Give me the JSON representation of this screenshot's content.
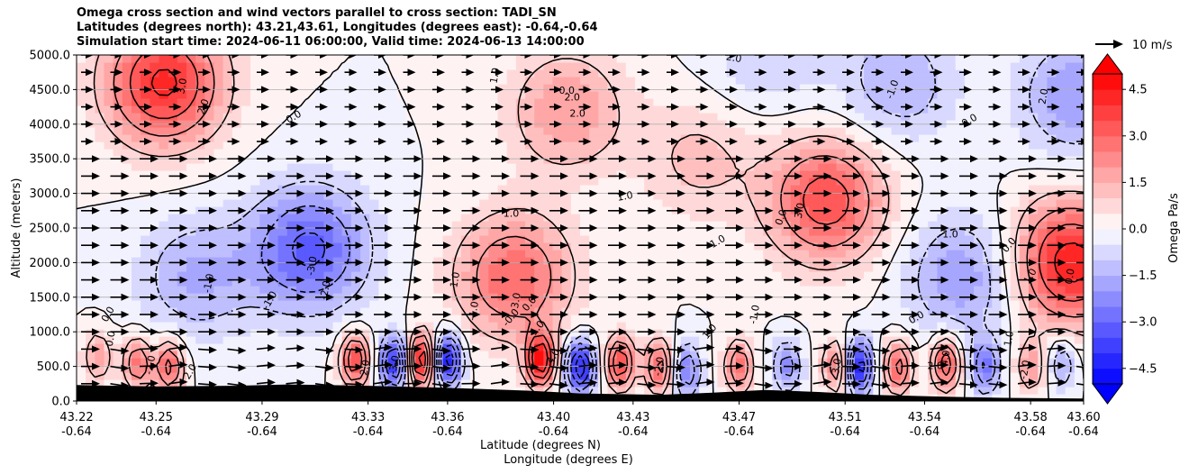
{
  "chart_data": {
    "type": "heatmap",
    "title_lines": [
      "Omega cross section and wind vectors parallel to cross section: TADI_SN",
      "Latitudes (degrees north): 43.21,43.61, Longitudes (degrees east): -0.64,-0.64",
      "Simulation start time: 2024-06-11 06:00:00, Valid time: 2024-06-13 14:00:00"
    ],
    "ylabel": "Altitude (meters)",
    "xlabel": "Latitude (degrees N)",
    "xlabel2": "Longitude (degrees E)",
    "ylim": [
      0,
      5000
    ],
    "yticks": [
      "0.0",
      "500.0",
      "1000.0",
      "1500.0",
      "2000.0",
      "2500.0",
      "3000.0",
      "3500.0",
      "4000.0",
      "4500.0",
      "5000.0"
    ],
    "xlim": [
      43.22,
      43.6
    ],
    "xticks": [
      {
        "lat": "43.22",
        "lon": "-0.64"
      },
      {
        "lat": "43.25",
        "lon": "-0.64"
      },
      {
        "lat": "43.29",
        "lon": "-0.64"
      },
      {
        "lat": "43.33",
        "lon": "-0.64"
      },
      {
        "lat": "43.36",
        "lon": "-0.64"
      },
      {
        "lat": "43.40",
        "lon": "-0.64"
      },
      {
        "lat": "43.43",
        "lon": "-0.64"
      },
      {
        "lat": "43.47",
        "lon": "-0.64"
      },
      {
        "lat": "43.51",
        "lon": "-0.64"
      },
      {
        "lat": "43.54",
        "lon": "-0.64"
      },
      {
        "lat": "43.58",
        "lon": "-0.64"
      },
      {
        "lat": "43.60",
        "lon": "-0.64"
      }
    ],
    "grid": "horizontal",
    "colorbar": {
      "label": "Omega Pa/s",
      "range": [
        -5,
        5
      ],
      "ticks": [
        "4.5",
        "3.0",
        "1.5",
        "0.0",
        "−1.5",
        "−3.0",
        "−4.5"
      ],
      "tick_values": [
        4.5,
        3.0,
        1.5,
        0.0,
        -1.5,
        -3.0,
        -4.5
      ],
      "colormap": "bwr",
      "levels": 20
    },
    "quiver_key": "10 m/s",
    "omega_features": [
      {
        "lat": 43.253,
        "alt": 4600,
        "omega": 4.2
      },
      {
        "lat": 43.405,
        "alt": 4200,
        "omega": 2.0
      },
      {
        "lat": 43.503,
        "alt": 2900,
        "omega": 3.5
      },
      {
        "lat": 43.595,
        "alt": 2000,
        "omega": 4.5
      },
      {
        "lat": 43.385,
        "alt": 1800,
        "omega": 3.0
      },
      {
        "lat": 43.455,
        "alt": 3500,
        "omega": 1.2
      },
      {
        "lat": 43.308,
        "alt": 2200,
        "omega": -3.2
      },
      {
        "lat": 43.265,
        "alt": 1800,
        "omega": -1.6
      },
      {
        "lat": 43.555,
        "alt": 1800,
        "omega": -2.0
      },
      {
        "lat": 43.53,
        "alt": 4600,
        "omega": -1.5
      },
      {
        "lat": 43.598,
        "alt": 4400,
        "omega": -2.0
      },
      {
        "lat": 43.48,
        "alt": 5000,
        "omega": -1.0
      },
      {
        "lat": 43.395,
        "alt": 600,
        "omega": 5.0
      },
      {
        "lat": 43.41,
        "alt": 500,
        "omega": -5.0
      },
      {
        "lat": 43.36,
        "alt": 600,
        "omega": -5.0
      },
      {
        "lat": 43.35,
        "alt": 600,
        "omega": 5.0
      },
      {
        "lat": 43.325,
        "alt": 600,
        "omega": 4.0
      },
      {
        "lat": 43.34,
        "alt": 550,
        "omega": -4.5
      },
      {
        "lat": 43.243,
        "alt": 550,
        "omega": 3.0
      },
      {
        "lat": 43.255,
        "alt": 500,
        "omega": 3.5
      },
      {
        "lat": 43.228,
        "alt": 650,
        "omega": 2.0
      },
      {
        "lat": 43.425,
        "alt": 550,
        "omega": 4.0
      },
      {
        "lat": 43.44,
        "alt": 500,
        "omega": 3.5
      },
      {
        "lat": 43.45,
        "alt": 450,
        "omega": -3.0
      },
      {
        "lat": 43.47,
        "alt": 500,
        "omega": 3.0
      },
      {
        "lat": 43.488,
        "alt": 500,
        "omega": -2.5
      },
      {
        "lat": 43.507,
        "alt": 500,
        "omega": 3.0
      },
      {
        "lat": 43.515,
        "alt": 500,
        "omega": -5.0
      },
      {
        "lat": 43.53,
        "alt": 500,
        "omega": 3.5
      },
      {
        "lat": 43.548,
        "alt": 550,
        "omega": 4.0
      },
      {
        "lat": 43.563,
        "alt": 500,
        "omega": -3.0
      },
      {
        "lat": 43.58,
        "alt": 500,
        "omega": 2.0
      },
      {
        "lat": 43.592,
        "alt": 550,
        "omega": -2.0
      }
    ],
    "contour_labels": [
      {
        "text": "3.0",
        "lat": 43.26,
        "alt": 4550,
        "rot": -80
      },
      {
        "text": "2.0",
        "lat": 43.268,
        "alt": 4250,
        "rot": -70
      },
      {
        "text": "0.0",
        "lat": 43.302,
        "alt": 4100,
        "rot": -30
      },
      {
        "text": "1.0",
        "lat": 43.378,
        "alt": 4700,
        "rot": -80
      },
      {
        "text": "2.0",
        "lat": 43.407,
        "alt": 4380,
        "rot": 0
      },
      {
        "text": "2.0",
        "lat": 43.409,
        "alt": 4150,
        "rot": 0
      },
      {
        "text": "0.0",
        "lat": 43.405,
        "alt": 4480,
        "rot": 0
      },
      {
        "text": "2.0",
        "lat": 43.468,
        "alt": 4950,
        "rot": 10
      },
      {
        "text": "1.0",
        "lat": 43.427,
        "alt": 2950,
        "rot": -10
      },
      {
        "text": "1.0",
        "lat": 43.384,
        "alt": 2700,
        "rot": 0
      },
      {
        "text": "1.0",
        "lat": 43.462,
        "alt": 2300,
        "rot": -30
      },
      {
        "text": "3.0",
        "lat": 43.493,
        "alt": 2750,
        "rot": -80
      },
      {
        "text": "0.0",
        "lat": 43.486,
        "alt": 2650,
        "rot": -70
      },
      {
        "text": "-1.0",
        "lat": 43.528,
        "alt": 4500,
        "rot": -70
      },
      {
        "text": "0.0",
        "lat": 43.557,
        "alt": 4050,
        "rot": -30
      },
      {
        "text": "-1.0",
        "lat": 43.549,
        "alt": 2400,
        "rot": 0
      },
      {
        "text": "0.0",
        "lat": 43.572,
        "alt": 2250,
        "rot": -50
      },
      {
        "text": "2.0",
        "lat": 43.585,
        "alt": 4400,
        "rot": -80
      },
      {
        "text": "1.0",
        "lat": 43.58,
        "alt": 1800,
        "rot": -60
      },
      {
        "text": "0.0",
        "lat": 43.595,
        "alt": 1800,
        "rot": -80
      },
      {
        "text": "-1.0",
        "lat": 43.27,
        "alt": 1700,
        "rot": -80
      },
      {
        "text": "-3.0",
        "lat": 43.309,
        "alt": 1950,
        "rot": -80
      },
      {
        "text": "-2.0",
        "lat": 43.314,
        "alt": 1600,
        "rot": -80
      },
      {
        "text": "-1.0",
        "lat": 43.293,
        "alt": 1450,
        "rot": -60
      },
      {
        "text": "1.0",
        "lat": 43.363,
        "alt": 1750,
        "rot": -80
      },
      {
        "text": "3.0",
        "lat": 43.386,
        "alt": 1450,
        "rot": -80
      },
      {
        "text": "0.0",
        "lat": 43.391,
        "alt": 1400,
        "rot": -50
      },
      {
        "text": "-0.0",
        "lat": 43.384,
        "alt": 1200,
        "rot": -50
      },
      {
        "text": "1.0",
        "lat": 43.394,
        "alt": 1050,
        "rot": -50
      },
      {
        "text": "-1.0",
        "lat": 43.37,
        "alt": 1300,
        "rot": -80
      },
      {
        "text": "0.0",
        "lat": 43.232,
        "alt": 1250,
        "rot": -60
      },
      {
        "text": "0.0",
        "lat": 43.233,
        "alt": 900,
        "rot": -80
      },
      {
        "text": "1.0",
        "lat": 43.459,
        "alt": 1000,
        "rot": -50
      },
      {
        "text": "-1.0",
        "lat": 43.476,
        "alt": 1250,
        "rot": -80
      },
      {
        "text": "0.0",
        "lat": 43.537,
        "alt": 1200,
        "rot": -30
      },
      {
        "text": "1.0",
        "lat": 43.572,
        "alt": 900,
        "rot": -80
      },
      {
        "text": "2.0",
        "lat": 43.544,
        "alt": 500,
        "rot": 0
      },
      {
        "text": "-2.0",
        "lat": 43.44,
        "alt": 500,
        "rot": -80
      },
      {
        "text": "2.0",
        "lat": 43.329,
        "alt": 480,
        "rot": -80
      },
      {
        "text": "-2.0",
        "lat": 43.248,
        "alt": 520,
        "rot": -80
      },
      {
        "text": "2.0",
        "lat": 43.263,
        "alt": 420,
        "rot": -60
      },
      {
        "text": "4.0",
        "lat": 43.4,
        "alt": 640,
        "rot": -60
      },
      {
        "text": "4.0",
        "lat": 43.548,
        "alt": 620,
        "rot": -80
      },
      {
        "text": "-3.0",
        "lat": 43.34,
        "alt": 520,
        "rot": -80
      },
      {
        "text": "3.0",
        "lat": 43.507,
        "alt": 500,
        "rot": -80
      },
      {
        "text": "-2.0",
        "lat": 43.578,
        "alt": 450,
        "rot": -80
      }
    ]
  }
}
